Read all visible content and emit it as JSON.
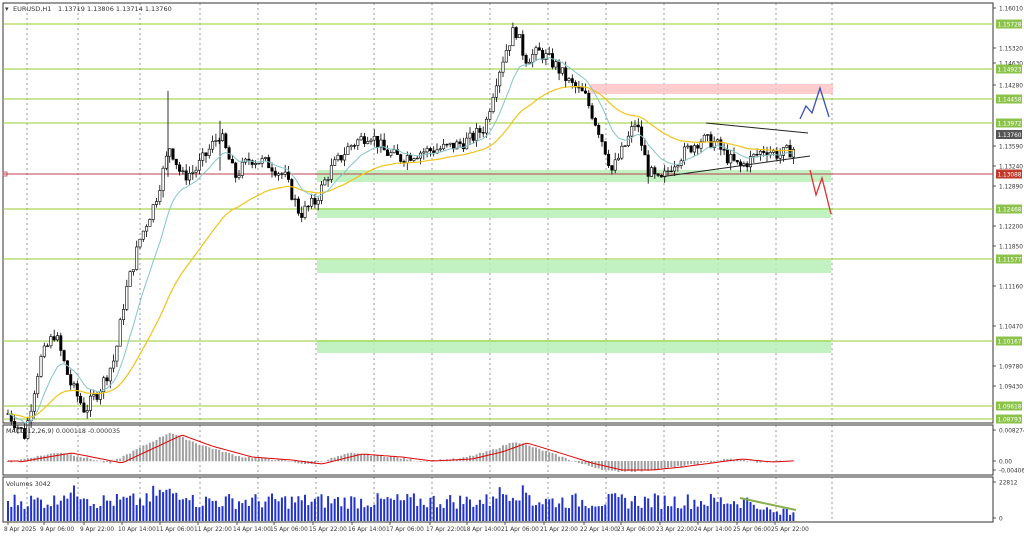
{
  "window": {
    "symbol_title": "EURUSD,H1",
    "ohlc": "1.13719 1.13806 1.13714 1.13760"
  },
  "price_axis": {
    "ticks": [
      "1.16010",
      "1.15320",
      "1.14630",
      "1.14280",
      "1.13590",
      "1.13240",
      "1.12890",
      "1.12200",
      "1.11850",
      "1.11160",
      "1.10470",
      "1.09780",
      "1.09430"
    ],
    "current_price": "1.13760",
    "horizontal_level": "1.13088",
    "level_labels": [
      "1.15728",
      "1.14923",
      "1.14458",
      "1.13972",
      "1.12468",
      "1.11577",
      "1.10167",
      "1.09618",
      "1.08793"
    ]
  },
  "macd": {
    "title": "MACD(12,26,9) 0.000118 -0.000035",
    "ticks": [
      "0.008274",
      "0.00",
      "-0.004062"
    ]
  },
  "volumes": {
    "title": "Volumes 3042",
    "ticks": [
      "22812",
      "0"
    ]
  },
  "time_axis": {
    "labels": [
      "8 Apr 2025",
      "9 Apr 06:00",
      "9 Apr 22:00",
      "10 Apr 14:00",
      "11 Apr 06:00",
      "11 Apr 22:00",
      "14 Apr 14:00",
      "15 Apr 06:00",
      "15 Apr 22:00",
      "16 Apr 14:00",
      "17 Apr 06:00",
      "17 Apr 22:00",
      "18 Apr 14:00",
      "21 Apr 06:00",
      "21 Apr 22:00",
      "22 Apr 14:00",
      "23 Apr 06:00",
      "23 Apr 22:00",
      "24 Apr 14:00",
      "25 Apr 06:00",
      "25 Apr 22:00"
    ]
  },
  "colors": {
    "candle_up": "#000000",
    "candle_down": "#000000",
    "ma_slow": "#f0c419",
    "ma_fast": "#86c5c9",
    "level_line": "#9acd32",
    "zone_fill": "#b7f0b7",
    "resistance_zone": "#ffc0c0",
    "horizontal_line": "#c04050",
    "label_green": "#8bc34a",
    "label_dark": "#555555",
    "label_red": "#c0392b",
    "macd_signal": "#e00000",
    "macd_hist": "#a0a0a0",
    "volume_bar": "#2233cc",
    "forecast_up": "#3a4fb8",
    "forecast_down": "#e03030"
  }
}
